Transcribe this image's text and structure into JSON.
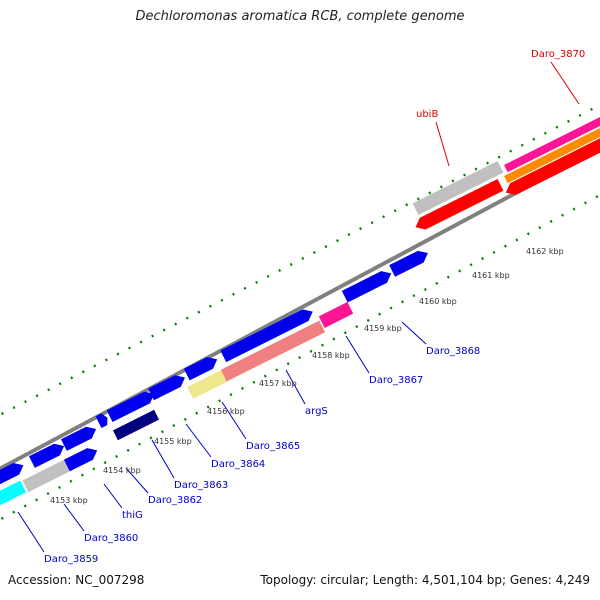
{
  "title": "Dechloromonas aromatica RCB, complete genome",
  "footer": {
    "accession": "Accession: NC_007298",
    "summary": "Topology: circular; Length: 4,501,104 bp; Genes: 4,249"
  },
  "ticks": [
    "4153 kbp",
    "4154 kbp",
    "4155 kbp",
    "4156 kbp",
    "4157 kbp",
    "4158 kbp",
    "4159 kbp",
    "4160 kbp",
    "4161 kbp",
    "4162 kbp"
  ],
  "gene_labels": {
    "reverse": [
      "Daro_3870",
      "ubiB"
    ],
    "forward": [
      "Daro_3859",
      "Daro_3860",
      "thiG",
      "Daro_3862",
      "Daro_3863",
      "Daro_3864",
      "Daro_3865",
      "argS",
      "Daro_3867",
      "Daro_3868"
    ]
  },
  "colors": {
    "cds": "#0000ee",
    "trna": "#ff0000",
    "highlight_pink": "#ff1493",
    "salmon": "#f08080",
    "khaki": "#f0e68c",
    "cyan": "#00ffff",
    "gray": "#c0c0c0",
    "orange": "#ff8c00",
    "magenta": "#ff1493",
    "tick_green": "#008000",
    "backbone": "#808080",
    "label_blue": "#0000cc",
    "label_red": "#dd0000"
  }
}
